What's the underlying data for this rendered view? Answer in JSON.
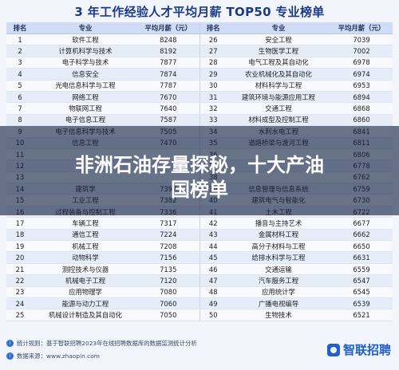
{
  "title": "3 年工作经验人才平均月薪 TOP50 专业榜单",
  "columns": [
    "排名",
    "专业",
    "平均月薪（元）",
    "排名",
    "专业",
    "平均月薪（元）"
  ],
  "rows": [
    [
      "1",
      "软件工程",
      "8248",
      "26",
      "安全工程",
      "7039"
    ],
    [
      "2",
      "计算机科学与技术",
      "8192",
      "27",
      "生物医学工程",
      "7002"
    ],
    [
      "3",
      "电子科学与技术",
      "7877",
      "28",
      "电气工程及其自动化",
      "6978"
    ],
    [
      "4",
      "信息安全",
      "7874",
      "29",
      "农业机械化及其自动化",
      "6974"
    ],
    [
      "5",
      "光电信息科学与工程",
      "7787",
      "30",
      "材料科学与工程",
      "6953"
    ],
    [
      "6",
      "网络工程",
      "7670",
      "31",
      "建筑环境与能源应用工程",
      "6894"
    ],
    [
      "7",
      "物联网工程",
      "7640",
      "32",
      "交通工程",
      "6868"
    ],
    [
      "8",
      "电子信息工程",
      "7587",
      "33",
      "材料成型及控制工程",
      "6860"
    ],
    [
      "9",
      "电子信息科学与技术",
      "7505",
      "34",
      "水利水电工程",
      "6841"
    ],
    [
      "10",
      "信息工程",
      "7470",
      "35",
      "道路桥梁与渡河工程",
      "6811"
    ],
    [
      "11",
      "",
      "",
      "36",
      "",
      "6806"
    ],
    [
      "12",
      "",
      "",
      "37",
      "",
      "6778"
    ],
    [
      "13",
      "",
      "",
      "38",
      "",
      "6762"
    ],
    [
      "14",
      "建筑学",
      "7397",
      "39",
      "信息管理与信息系统",
      "6759"
    ],
    [
      "15",
      "工业工程",
      "7382",
      "40",
      "建筑电气与智能化",
      "6730"
    ],
    [
      "16",
      "过程装备与控制工程",
      "7336",
      "41",
      "土木工程",
      "6722"
    ],
    [
      "17",
      "车辆工程",
      "7317",
      "42",
      "播音与主持艺术",
      "6677"
    ],
    [
      "18",
      "通信工程",
      "7224",
      "43",
      "金属材料工程",
      "6662"
    ],
    [
      "19",
      "机械工程",
      "7208",
      "44",
      "高分子材料与工程",
      "6650"
    ],
    [
      "20",
      "动物科学",
      "7156",
      "45",
      "给排水科学与工程",
      "6631"
    ],
    [
      "21",
      "测控技术与仪器",
      "7135",
      "46",
      "交通运输",
      "6559"
    ],
    [
      "22",
      "机械电子工程",
      "7120",
      "47",
      "汽车服务工程",
      "6547"
    ],
    [
      "23",
      "应用物理学",
      "7080",
      "48",
      "应用统计学",
      "6545"
    ],
    [
      "24",
      "能源与动力工程",
      "7060",
      "49",
      "广播电视编导",
      "6539"
    ],
    [
      "25",
      "机械设计制造及其自动化",
      "7050",
      "50",
      "生物技术",
      "6521"
    ]
  ],
  "headline_lines": [
    "非洲石油存量探秘，十大产油",
    "国榜单"
  ],
  "footnotes": [
    "统计规则：基于智联招聘2023年在线招聘数据库的数据监测统计分析",
    "数据来源：www.zhaopin.com"
  ],
  "brand": "智联招聘"
}
